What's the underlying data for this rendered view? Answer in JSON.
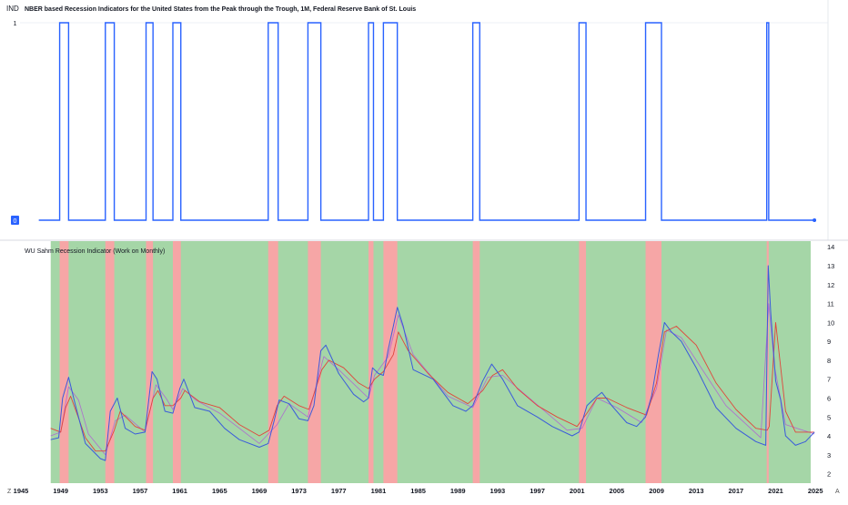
{
  "top_pane": {
    "scale_label": "IND",
    "title": "NBER based Recession Indicators for the United States from the Peak through the Trough, 1M, Federal Reserve Bank of St. Louis"
  },
  "bottom_pane": {
    "title": "WU Sahm Recession Indicator (Work on Monthly)"
  },
  "footer": {
    "left_btn": "Z",
    "right_btn": "A"
  },
  "colors": {
    "indicator_line": "#2962ff",
    "recession_band": "#f6a6a6",
    "expansion_band": "#a5d6a7",
    "unemployment_line": "#3b5bdb",
    "ma_line": "#e0463c",
    "ma_fast_line": "#b05bd6",
    "text": "#131722"
  },
  "chart_data": [
    {
      "type": "line",
      "title": "NBER based Recession Indicators for the United States from the Peak through the Trough, 1M, Federal Reserve Bank of St. Louis",
      "x_type": "year",
      "xlim": [
        1945,
        2025.9
      ],
      "ylim": [
        0,
        1
      ],
      "y_ticks": [
        0,
        1
      ],
      "recessions": [
        [
          1948.9,
          1949.8
        ],
        [
          1953.5,
          1954.4
        ],
        [
          1957.6,
          1958.3
        ],
        [
          1960.3,
          1961.1
        ],
        [
          1969.9,
          1970.9
        ],
        [
          1973.9,
          1975.2
        ],
        [
          1980.0,
          1980.5
        ],
        [
          1981.5,
          1982.9
        ],
        [
          1990.5,
          1991.2
        ],
        [
          2001.2,
          2001.9
        ],
        [
          2007.9,
          2009.5
        ],
        [
          2020.1,
          2020.3
        ]
      ],
      "last_point": [
        2024.9,
        0
      ]
    },
    {
      "type": "line",
      "title": "WU Sahm Recession Indicator (Work on Monthly)",
      "x_type": "year",
      "xlim": [
        1945,
        2025.9
      ],
      "ylim": [
        1.5,
        14.3
      ],
      "y_ticks": [
        2,
        3,
        4,
        5,
        6,
        7,
        8,
        9,
        10,
        11,
        12,
        13,
        14
      ],
      "x_ticks": [
        1945,
        1949,
        1953,
        1957,
        1961,
        1965,
        1969,
        1973,
        1977,
        1981,
        1985,
        1989,
        1993,
        1997,
        2001,
        2005,
        2009,
        2013,
        2017,
        2021,
        2025
      ],
      "background_start": 1948.0,
      "recession_bands": [
        [
          1948.9,
          1949.8
        ],
        [
          1953.5,
          1954.4
        ],
        [
          1957.6,
          1958.3
        ],
        [
          1960.3,
          1961.1
        ],
        [
          1969.9,
          1970.9
        ],
        [
          1973.9,
          1975.2
        ],
        [
          1980.0,
          1980.5
        ],
        [
          1981.5,
          1982.9
        ],
        [
          1990.5,
          1991.2
        ],
        [
          2001.2,
          2001.9
        ],
        [
          2007.9,
          2009.5
        ],
        [
          2020.1,
          2020.3
        ]
      ],
      "series": [
        {
          "key": "unemployment",
          "x": [
            1948.0,
            1948.8,
            1949.2,
            1949.8,
            1950.5,
            1951.5,
            1953.0,
            1953.5,
            1954.0,
            1954.7,
            1955.5,
            1956.5,
            1957.5,
            1958.2,
            1958.7,
            1959.5,
            1960.3,
            1961.0,
            1961.4,
            1962.5,
            1964.0,
            1965.5,
            1967.0,
            1969.0,
            1969.9,
            1970.5,
            1971.0,
            1972.0,
            1973.0,
            1973.9,
            1974.5,
            1975.2,
            1975.7,
            1977.0,
            1978.5,
            1979.5,
            1980.0,
            1980.4,
            1981.0,
            1981.5,
            1982.0,
            1982.5,
            1982.9,
            1983.5,
            1984.5,
            1986.5,
            1988.5,
            1989.8,
            1990.5,
            1991.5,
            1992.4,
            1993.5,
            1995.0,
            1997.0,
            1998.5,
            2000.5,
            2001.2,
            2002.0,
            2002.8,
            2003.5,
            2004.5,
            2006.0,
            2007.0,
            2007.9,
            2008.5,
            2009.2,
            2009.8,
            2010.5,
            2011.5,
            2013.0,
            2015.0,
            2017.0,
            2019.0,
            2020.0,
            2020.25,
            2020.5,
            2021.0,
            2021.5,
            2022.0,
            2023.0,
            2024.0,
            2024.9
          ],
          "values": [
            3.8,
            3.9,
            6.0,
            7.1,
            5.6,
            3.6,
            2.8,
            2.7,
            5.3,
            6.0,
            4.4,
            4.1,
            4.2,
            7.4,
            7.0,
            5.3,
            5.2,
            6.5,
            7.0,
            5.5,
            5.3,
            4.4,
            3.8,
            3.4,
            3.6,
            4.8,
            5.9,
            5.7,
            4.9,
            4.8,
            5.6,
            8.5,
            8.8,
            7.3,
            6.2,
            5.8,
            6.0,
            7.6,
            7.3,
            7.2,
            8.6,
            9.8,
            10.8,
            9.8,
            7.5,
            7.0,
            5.6,
            5.3,
            5.6,
            6.9,
            7.8,
            7.0,
            5.6,
            5.0,
            4.5,
            4.0,
            4.2,
            5.6,
            6.0,
            6.3,
            5.6,
            4.7,
            4.5,
            5.0,
            6.1,
            8.3,
            10.0,
            9.5,
            9.0,
            7.6,
            5.5,
            4.4,
            3.7,
            3.5,
            13.0,
            10.5,
            6.9,
            5.9,
            4.0,
            3.5,
            3.7,
            4.2
          ]
        },
        {
          "key": "moving_average",
          "x": [
            1948.0,
            1949.0,
            1949.5,
            1950.0,
            1950.7,
            1951.5,
            1952.5,
            1953.5,
            1954.4,
            1955.0,
            1956.5,
            1957.5,
            1958.3,
            1958.8,
            1959.5,
            1960.3,
            1961.1,
            1961.5,
            1963.0,
            1965.0,
            1967.0,
            1969.0,
            1970.0,
            1970.8,
            1971.5,
            1973.0,
            1974.0,
            1975.3,
            1976.0,
            1977.5,
            1979.0,
            1980.0,
            1980.6,
            1981.5,
            1982.5,
            1983.0,
            1984.0,
            1986.0,
            1988.0,
            1990.0,
            1991.5,
            1992.5,
            1993.5,
            1995.0,
            1997.0,
            1999.0,
            2001.0,
            2002.0,
            2003.0,
            2004.0,
            2006.0,
            2008.0,
            2009.0,
            2009.8,
            2011.0,
            2013.0,
            2015.0,
            2017.0,
            2019.0,
            2020.15,
            2020.35,
            2021.0,
            2022.0,
            2023.0,
            2024.9
          ],
          "values": [
            4.4,
            4.2,
            5.5,
            6.1,
            5.1,
            3.9,
            3.2,
            3.2,
            4.3,
            5.3,
            4.5,
            4.3,
            6.0,
            6.4,
            5.6,
            5.6,
            6.0,
            6.4,
            5.8,
            5.5,
            4.6,
            4.0,
            4.3,
            5.6,
            6.1,
            5.6,
            5.4,
            7.5,
            8.0,
            7.6,
            6.8,
            6.5,
            7.0,
            7.4,
            8.3,
            9.5,
            8.5,
            7.3,
            6.3,
            5.7,
            6.4,
            7.2,
            7.5,
            6.5,
            5.6,
            5.0,
            4.5,
            5.2,
            6.0,
            6.0,
            5.5,
            5.1,
            6.8,
            9.5,
            9.8,
            8.8,
            6.8,
            5.4,
            4.4,
            4.3,
            4.5,
            10.0,
            5.3,
            4.2,
            4.2
          ]
        },
        {
          "key": "fast_average",
          "x": [
            1948.0,
            1949.0,
            1949.8,
            1950.8,
            1951.8,
            1953.5,
            1954.5,
            1955.5,
            1957.5,
            1958.6,
            1959.6,
            1960.3,
            1961.3,
            1962.6,
            1965.0,
            1969.0,
            1970.8,
            1972.0,
            1973.9,
            1975.5,
            1977.0,
            1980.0,
            1980.6,
            1982.0,
            1983.0,
            1984.5,
            1988.0,
            1990.5,
            1992.0,
            1993.5,
            2000.0,
            2001.5,
            2003.0,
            2005.0,
            2007.5,
            2009.0,
            2010.0,
            2011.5,
            2016.0,
            2019.5,
            2020.3,
            2020.9,
            2022.0,
            2024.9
          ],
          "values": [
            4.0,
            4.2,
            6.6,
            5.9,
            4.1,
            3.0,
            4.8,
            5.1,
            4.2,
            6.7,
            6.0,
            5.4,
            6.5,
            5.9,
            5.2,
            3.6,
            4.6,
            5.7,
            5.0,
            8.2,
            7.5,
            6.0,
            7.2,
            8.2,
            10.4,
            8.3,
            6.1,
            5.5,
            7.1,
            7.2,
            4.3,
            4.4,
            6.0,
            5.5,
            4.7,
            6.5,
            9.6,
            9.2,
            5.6,
            3.9,
            11.0,
            7.6,
            4.6,
            4.1
          ]
        }
      ]
    }
  ]
}
